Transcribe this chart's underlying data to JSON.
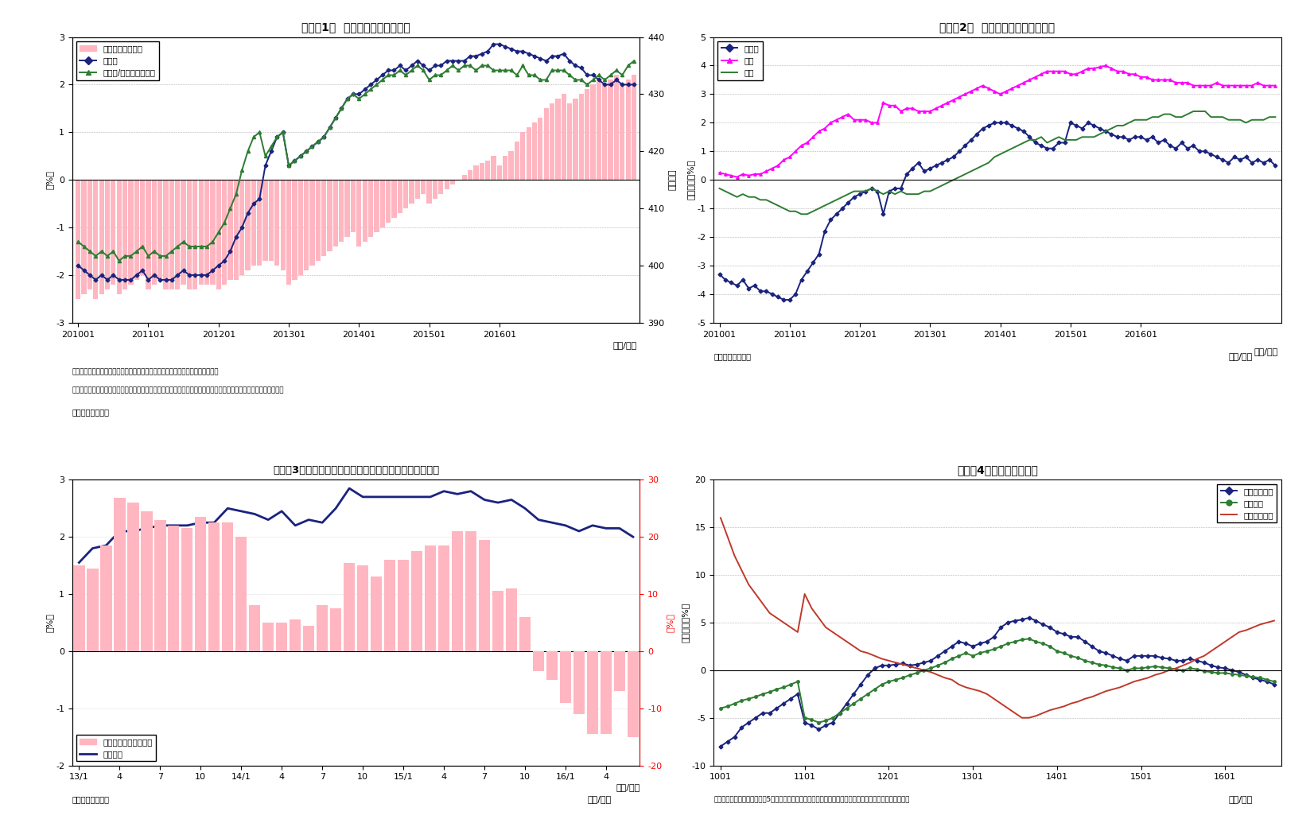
{
  "fig1": {
    "title": "（図表1）  銀行貸出残高の増減率",
    "ylabel_left": "（%）",
    "ylabel_right": "（兆円）",
    "xlabel": "（年/月）",
    "note1": "（注）特殊要因調整後は、為替変動・債権償却・流動化等の影響を考慮したもの",
    "note2": "　　特殊要因調整後の前年比＝（今月の調整後貸出残高－前年同月の調整前貸出残高）／前年同月の調整前貸出残高",
    "source": "（資料）日本銀行",
    "ylim_left": [
      -3,
      3
    ],
    "ylim_right": [
      390,
      440
    ],
    "yticks_left": [
      -3,
      -2,
      -1,
      0,
      1,
      2,
      3
    ],
    "yticks_right": [
      390,
      400,
      410,
      420,
      430,
      440
    ],
    "xtick_positions": [
      0,
      12,
      24,
      36,
      48,
      60,
      72
    ],
    "xtick_labels": [
      "201001",
      "201101",
      "201201",
      "201301",
      "201401",
      "201501",
      "201601"
    ],
    "bar_color": "#FFB6C1",
    "line1_color": "#1a237e",
    "line2_color": "#2e7d32",
    "legend_labels": [
      "貸出残高（右軸）",
      "前年比",
      "前年比/特殊要因調整後"
    ],
    "bar_data": [
      -2.5,
      -2.4,
      -2.3,
      -2.5,
      -2.4,
      -2.3,
      -2.2,
      -2.4,
      -2.3,
      -2.2,
      -2.1,
      -2.0,
      -2.3,
      -2.2,
      -2.1,
      -2.3,
      -2.3,
      -2.3,
      -2.2,
      -2.3,
      -2.3,
      -2.2,
      -2.2,
      -2.2,
      -2.3,
      -2.2,
      -2.1,
      -2.1,
      -2.0,
      -1.9,
      -1.8,
      -1.8,
      -1.7,
      -1.7,
      -1.8,
      -1.9,
      -2.2,
      -2.1,
      -2.0,
      -1.9,
      -1.8,
      -1.7,
      -1.6,
      -1.5,
      -1.4,
      -1.3,
      -1.2,
      -1.1,
      -1.4,
      -1.3,
      -1.2,
      -1.1,
      -1.0,
      -0.9,
      -0.8,
      -0.7,
      -0.6,
      -0.5,
      -0.4,
      -0.3,
      -0.5,
      -0.4,
      -0.3,
      -0.2,
      -0.1,
      0.0,
      0.1,
      0.2,
      0.3,
      0.35,
      0.4,
      0.5,
      0.3,
      0.5,
      0.6,
      0.8,
      1.0,
      1.1,
      1.2,
      1.3,
      1.5,
      1.6,
      1.7,
      1.8,
      1.6,
      1.7,
      1.8,
      1.9,
      2.0,
      2.1,
      2.0,
      2.1,
      2.2,
      2.0,
      2.1,
      2.2
    ],
    "line1_data": [
      -1.8,
      -1.9,
      -2.0,
      -2.1,
      -2.0,
      -2.1,
      -2.0,
      -2.1,
      -2.1,
      -2.1,
      -2.0,
      -1.9,
      -2.1,
      -2.0,
      -2.1,
      -2.1,
      -2.1,
      -2.0,
      -1.9,
      -2.0,
      -2.0,
      -2.0,
      -2.0,
      -1.9,
      -1.8,
      -1.7,
      -1.5,
      -1.2,
      -1.0,
      -0.7,
      -0.5,
      -0.4,
      0.3,
      0.6,
      0.9,
      1.0,
      0.3,
      0.4,
      0.5,
      0.6,
      0.7,
      0.8,
      0.9,
      1.1,
      1.3,
      1.5,
      1.7,
      1.8,
      1.8,
      1.9,
      2.0,
      2.1,
      2.2,
      2.3,
      2.3,
      2.4,
      2.3,
      2.4,
      2.5,
      2.4,
      2.3,
      2.4,
      2.4,
      2.5,
      2.5,
      2.5,
      2.5,
      2.6,
      2.6,
      2.65,
      2.7,
      2.85,
      2.85,
      2.8,
      2.75,
      2.7,
      2.7,
      2.65,
      2.6,
      2.55,
      2.5,
      2.6,
      2.6,
      2.65,
      2.5,
      2.4,
      2.35,
      2.2,
      2.2,
      2.1,
      2.0,
      2.0,
      2.1,
      2.0,
      2.0,
      2.0
    ],
    "line2_data": [
      -1.3,
      -1.4,
      -1.5,
      -1.6,
      -1.5,
      -1.6,
      -1.5,
      -1.7,
      -1.6,
      -1.6,
      -1.5,
      -1.4,
      -1.6,
      -1.5,
      -1.6,
      -1.6,
      -1.5,
      -1.4,
      -1.3,
      -1.4,
      -1.4,
      -1.4,
      -1.4,
      -1.3,
      -1.1,
      -0.9,
      -0.6,
      -0.3,
      0.2,
      0.6,
      0.9,
      1.0,
      0.5,
      0.7,
      0.9,
      1.0,
      0.3,
      0.4,
      0.5,
      0.6,
      0.7,
      0.8,
      0.9,
      1.1,
      1.3,
      1.5,
      1.7,
      1.8,
      1.7,
      1.8,
      1.9,
      2.0,
      2.1,
      2.2,
      2.2,
      2.3,
      2.2,
      2.3,
      2.4,
      2.3,
      2.1,
      2.2,
      2.2,
      2.3,
      2.4,
      2.3,
      2.4,
      2.4,
      2.3,
      2.4,
      2.4,
      2.3,
      2.3,
      2.3,
      2.3,
      2.2,
      2.4,
      2.2,
      2.2,
      2.1,
      2.1,
      2.3,
      2.3,
      2.3,
      2.2,
      2.1,
      2.1,
      2.0,
      2.1,
      2.2,
      2.1,
      2.2,
      2.3,
      2.2,
      2.4,
      2.5
    ]
  },
  "fig2": {
    "title": "（図表2）  業態別の貸出残高増減率",
    "ylabel_left": "（前年比、%）",
    "xlabel": "（年/月）",
    "source": "（資料）日本銀行",
    "ylim": [
      -5,
      5
    ],
    "yticks": [
      -5,
      -4,
      -3,
      -2,
      -1,
      0,
      1,
      2,
      3,
      4,
      5
    ],
    "xtick_positions": [
      0,
      12,
      24,
      36,
      48,
      60,
      72
    ],
    "xtick_labels": [
      "201001",
      "201101",
      "201201",
      "201301",
      "201401",
      "201501",
      "201601"
    ],
    "color_toshi": "#1a237e",
    "color_chigin": "#ff00ff",
    "color_shinkin": "#2e7d32",
    "legend_labels": [
      "都銀等",
      "地銀",
      "信金"
    ],
    "toshi_data": [
      -3.3,
      -3.5,
      -3.6,
      -3.7,
      -3.5,
      -3.8,
      -3.7,
      -3.9,
      -3.9,
      -4.0,
      -4.1,
      -4.2,
      -4.2,
      -4.0,
      -3.5,
      -3.2,
      -2.9,
      -2.6,
      -1.8,
      -1.4,
      -1.2,
      -1.0,
      -0.8,
      -0.6,
      -0.5,
      -0.4,
      -0.3,
      -0.4,
      -1.2,
      -0.4,
      -0.3,
      -0.3,
      0.2,
      0.4,
      0.6,
      0.3,
      0.4,
      0.5,
      0.6,
      0.7,
      0.8,
      1.0,
      1.2,
      1.4,
      1.6,
      1.8,
      1.9,
      2.0,
      2.0,
      2.0,
      1.9,
      1.8,
      1.7,
      1.5,
      1.3,
      1.2,
      1.1,
      1.1,
      1.3,
      1.3,
      2.0,
      1.9,
      1.8,
      2.0,
      1.9,
      1.8,
      1.7,
      1.6,
      1.5,
      1.5,
      1.4,
      1.5,
      1.5,
      1.4,
      1.5,
      1.3,
      1.4,
      1.2,
      1.1,
      1.3,
      1.1,
      1.2,
      1.0,
      1.0,
      0.9,
      0.8,
      0.7,
      0.6,
      0.8,
      0.7,
      0.8,
      0.6,
      0.7,
      0.6,
      0.7,
      0.5
    ],
    "chigi_data": [
      0.25,
      0.2,
      0.15,
      0.1,
      0.2,
      0.15,
      0.2,
      0.2,
      0.3,
      0.4,
      0.5,
      0.7,
      0.8,
      1.0,
      1.2,
      1.3,
      1.5,
      1.7,
      1.8,
      2.0,
      2.1,
      2.2,
      2.3,
      2.1,
      2.1,
      2.1,
      2.0,
      2.0,
      2.7,
      2.6,
      2.6,
      2.4,
      2.5,
      2.5,
      2.4,
      2.4,
      2.4,
      2.5,
      2.6,
      2.7,
      2.8,
      2.9,
      3.0,
      3.1,
      3.2,
      3.3,
      3.2,
      3.1,
      3.0,
      3.1,
      3.2,
      3.3,
      3.4,
      3.5,
      3.6,
      3.7,
      3.8,
      3.8,
      3.8,
      3.8,
      3.7,
      3.7,
      3.8,
      3.9,
      3.9,
      3.95,
      4.0,
      3.9,
      3.8,
      3.8,
      3.7,
      3.7,
      3.6,
      3.6,
      3.5,
      3.5,
      3.5,
      3.5,
      3.4,
      3.4,
      3.4,
      3.3,
      3.3,
      3.3,
      3.3,
      3.4,
      3.3,
      3.3,
      3.3,
      3.3,
      3.3,
      3.3,
      3.4,
      3.3,
      3.3,
      3.3
    ],
    "shinkin_data": [
      -0.3,
      -0.4,
      -0.5,
      -0.6,
      -0.5,
      -0.6,
      -0.6,
      -0.7,
      -0.7,
      -0.8,
      -0.9,
      -1.0,
      -1.1,
      -1.1,
      -1.2,
      -1.2,
      -1.1,
      -1.0,
      -0.9,
      -0.8,
      -0.7,
      -0.6,
      -0.5,
      -0.4,
      -0.4,
      -0.4,
      -0.3,
      -0.4,
      -0.5,
      -0.4,
      -0.5,
      -0.4,
      -0.5,
      -0.5,
      -0.5,
      -0.4,
      -0.4,
      -0.3,
      -0.2,
      -0.1,
      0.0,
      0.1,
      0.2,
      0.3,
      0.4,
      0.5,
      0.6,
      0.8,
      0.9,
      1.0,
      1.1,
      1.2,
      1.3,
      1.4,
      1.4,
      1.5,
      1.3,
      1.4,
      1.5,
      1.4,
      1.4,
      1.4,
      1.5,
      1.5,
      1.5,
      1.6,
      1.7,
      1.8,
      1.9,
      1.9,
      2.0,
      2.1,
      2.1,
      2.1,
      2.2,
      2.2,
      2.3,
      2.3,
      2.2,
      2.2,
      2.3,
      2.4,
      2.4,
      2.4,
      2.2,
      2.2,
      2.2,
      2.1,
      2.1,
      2.1,
      2.0,
      2.1,
      2.1,
      2.1,
      2.2,
      2.2
    ]
  },
  "fig3": {
    "title": "（図表3）銀行貸出とドル円レート（月次平均の前年比）",
    "ylabel_left": "（%）",
    "ylabel_right": "（%）",
    "xlabel": "（年/月）",
    "source": "（資料）日本銀行",
    "ylim_left": [
      -2.0,
      3.0
    ],
    "ylim_right": [
      -20,
      30
    ],
    "yticks_left": [
      -2.0,
      -1.0,
      0.0,
      1.0,
      2.0,
      3.0
    ],
    "yticks_right": [
      -20,
      -10,
      0,
      10,
      20,
      30
    ],
    "xtick_positions": [
      0,
      3,
      6,
      9,
      12,
      15,
      18,
      21,
      24,
      27,
      30,
      33,
      36,
      39
    ],
    "xtick_labels": [
      "13/1",
      "4",
      "7",
      "10",
      "14/1",
      "4",
      "7",
      "10",
      "15/1",
      "4",
      "7",
      "10",
      "16/1",
      "4"
    ],
    "bar_color": "#FFB6C1",
    "line_color": "#1a237e",
    "legend_bar": "ドル円レート（右軸）",
    "legend_line": "銀行貸出",
    "bar_data": [
      15,
      14.5,
      18.5,
      26.8,
      26,
      24.5,
      23,
      22,
      21.5,
      23.5,
      22.5,
      22.5,
      20,
      8,
      5,
      5,
      5.5,
      4.5,
      8,
      7.5,
      15.5,
      15,
      13,
      16,
      16,
      17.5,
      18.5,
      18.5,
      21,
      21,
      19.5,
      10.5,
      11,
      6,
      -3.5,
      -5,
      -9,
      -11,
      -14.5,
      -14.5,
      -7,
      -15
    ],
    "line_data": [
      1.55,
      1.8,
      1.85,
      2.1,
      2.1,
      2.15,
      2.2,
      2.2,
      2.2,
      2.25,
      2.25,
      2.5,
      2.45,
      2.4,
      2.3,
      2.45,
      2.2,
      2.3,
      2.25,
      2.5,
      2.85,
      2.7,
      2.7,
      2.7,
      2.7,
      2.7,
      2.7,
      2.8,
      2.75,
      2.8,
      2.65,
      2.6,
      2.65,
      2.5,
      2.3,
      2.25,
      2.2,
      2.1,
      2.2,
      2.15,
      2.15,
      2.0
    ]
  },
  "fig4": {
    "title": "（図表4）貸出先別貸出金",
    "ylabel_left": "（前年比、%）",
    "xlabel": "（年/月）",
    "note": "（資料）日本銀行　　（注）5月分まで（末残ベース）、大・中堅企業は「法人」－「中小企業」にて算出",
    "ylim": [
      -10,
      20
    ],
    "yticks": [
      -10,
      -5,
      0,
      5,
      10,
      15,
      20
    ],
    "xtick_positions": [
      0,
      12,
      24,
      36,
      48,
      60,
      72
    ],
    "xtick_labels": [
      "1001",
      "1101",
      "1201",
      "1301",
      "1401",
      "1501",
      "1601"
    ],
    "color_large": "#1a237e",
    "color_sme": "#2e7d32",
    "color_local": "#c0392b",
    "legend_labels": [
      "大・中堅企業",
      "中小企業",
      "地方公共団体"
    ],
    "large_data": [
      -8.0,
      -7.5,
      -7.0,
      -6.0,
      -5.5,
      -5.0,
      -4.5,
      -4.5,
      -4.0,
      -3.5,
      -3.0,
      -2.5,
      -5.5,
      -5.8,
      -6.2,
      -5.8,
      -5.5,
      -4.5,
      -3.5,
      -2.5,
      -1.5,
      -0.5,
      0.2,
      0.5,
      0.5,
      0.6,
      0.7,
      0.5,
      0.6,
      0.8,
      1.0,
      1.5,
      2.0,
      2.5,
      3.0,
      2.8,
      2.5,
      2.8,
      3.0,
      3.5,
      4.5,
      5.0,
      5.2,
      5.3,
      5.5,
      5.2,
      4.8,
      4.5,
      4.0,
      3.8,
      3.5,
      3.5,
      3.0,
      2.5,
      2.0,
      1.8,
      1.5,
      1.2,
      1.0,
      1.5,
      1.5,
      1.5,
      1.5,
      1.3,
      1.2,
      1.0,
      1.0,
      1.2,
      1.0,
      0.8,
      0.5,
      0.3,
      0.2,
      0.0,
      -0.2,
      -0.5,
      -0.8,
      -1.0,
      -1.2,
      -1.5
    ],
    "sme_data": [
      -4.0,
      -3.8,
      -3.5,
      -3.2,
      -3.0,
      -2.8,
      -2.5,
      -2.3,
      -2.0,
      -1.8,
      -1.5,
      -1.2,
      -5.0,
      -5.2,
      -5.5,
      -5.3,
      -5.0,
      -4.5,
      -4.0,
      -3.5,
      -3.0,
      -2.5,
      -2.0,
      -1.5,
      -1.2,
      -1.0,
      -0.8,
      -0.5,
      -0.3,
      0.0,
      0.2,
      0.5,
      0.8,
      1.2,
      1.5,
      1.8,
      1.5,
      1.8,
      2.0,
      2.2,
      2.5,
      2.8,
      3.0,
      3.2,
      3.3,
      3.0,
      2.8,
      2.5,
      2.0,
      1.8,
      1.5,
      1.3,
      1.0,
      0.8,
      0.6,
      0.5,
      0.3,
      0.2,
      0.0,
      0.2,
      0.2,
      0.3,
      0.4,
      0.3,
      0.2,
      0.1,
      0.0,
      0.2,
      0.1,
      -0.1,
      -0.2,
      -0.3,
      -0.3,
      -0.4,
      -0.5,
      -0.6,
      -0.7,
      -0.8,
      -1.0,
      -1.2
    ],
    "local_data": [
      16.0,
      14.0,
      12.0,
      10.5,
      9.0,
      8.0,
      7.0,
      6.0,
      5.5,
      5.0,
      4.5,
      4.0,
      8.0,
      6.5,
      5.5,
      4.5,
      4.0,
      3.5,
      3.0,
      2.5,
      2.0,
      1.8,
      1.5,
      1.2,
      1.0,
      0.8,
      0.6,
      0.4,
      0.2,
      0.0,
      -0.2,
      -0.5,
      -0.8,
      -1.0,
      -1.5,
      -1.8,
      -2.0,
      -2.2,
      -2.5,
      -3.0,
      -3.5,
      -4.0,
      -4.5,
      -5.0,
      -5.0,
      -4.8,
      -4.5,
      -4.2,
      -4.0,
      -3.8,
      -3.5,
      -3.3,
      -3.0,
      -2.8,
      -2.5,
      -2.2,
      -2.0,
      -1.8,
      -1.5,
      -1.2,
      -1.0,
      -0.8,
      -0.5,
      -0.3,
      0.0,
      0.2,
      0.5,
      0.8,
      1.2,
      1.5,
      2.0,
      2.5,
      3.0,
      3.5,
      4.0,
      4.2,
      4.5,
      4.8,
      5.0,
      5.2
    ]
  }
}
